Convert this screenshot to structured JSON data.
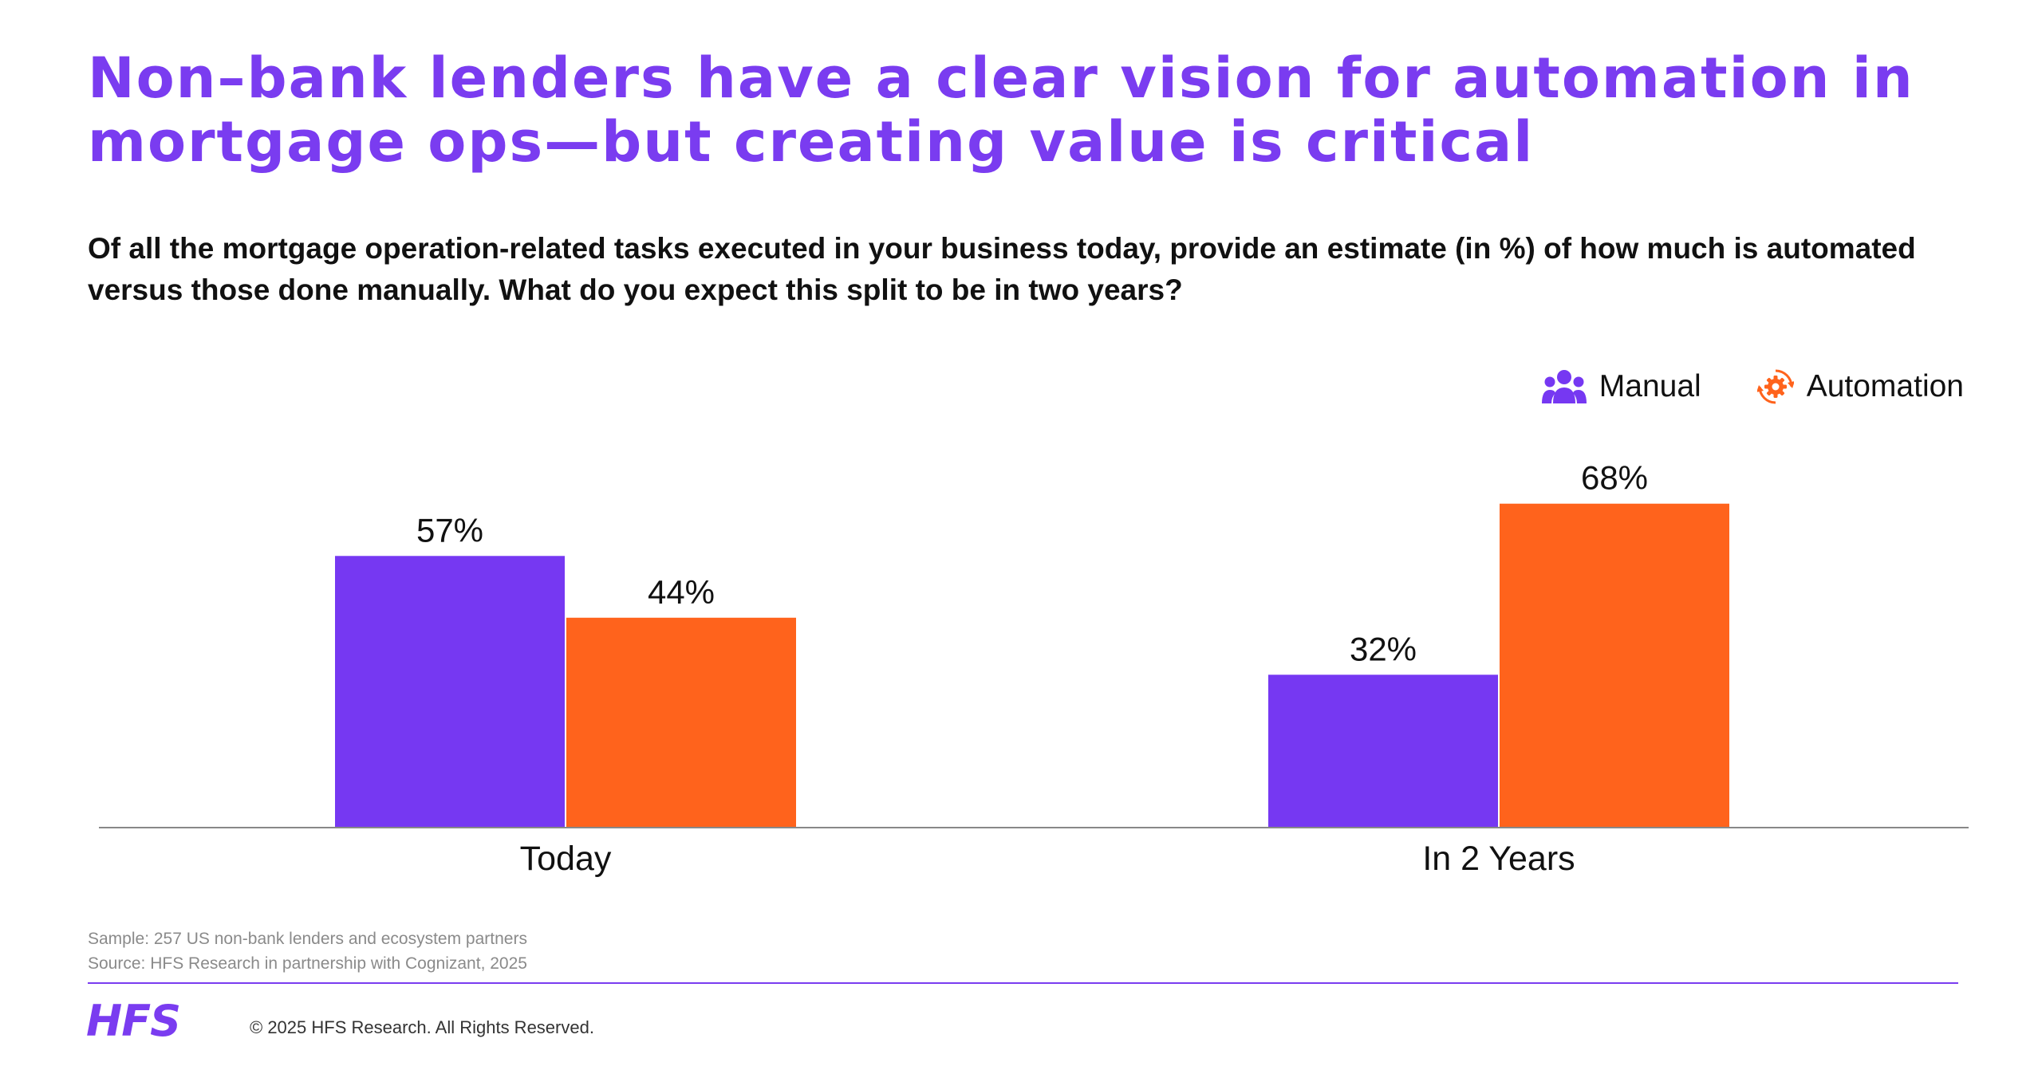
{
  "title": "Non–bank lenders have a clear vision for automation in mortgage ops—but creating value is critical",
  "question": "Of all the mortgage operation-related tasks executed in your business today, provide an estimate (in %) of how much is automated versus those done manually. What do you expect this split to be in two years?",
  "legend": {
    "manual": {
      "label": "Manual",
      "icon": "people-group-icon"
    },
    "automation": {
      "label": "Automation",
      "icon": "gear-cycle-icon"
    }
  },
  "colors": {
    "manual": "#7638f2",
    "automation": "#ff631c",
    "title": "#7a3cf0",
    "axis": "#888888"
  },
  "chart_data": {
    "type": "bar",
    "categories": [
      "Today",
      "In 2 Years"
    ],
    "series": [
      {
        "name": "Manual",
        "values": [
          57,
          32
        ],
        "labels": [
          "57%",
          "32%"
        ]
      },
      {
        "name": "Automation",
        "values": [
          44,
          68
        ],
        "labels": [
          "44%",
          "68%"
        ]
      }
    ],
    "title": "",
    "xlabel": "",
    "ylabel": "",
    "ylim": [
      0,
      100
    ],
    "grid": false,
    "legend_position": "top-right"
  },
  "footnotes": {
    "sample": "Sample: 257 US non-bank lenders and ecosystem partners",
    "source": "Source: HFS Research in partnership with Cognizant, 2025"
  },
  "footer": {
    "logo": "HFS",
    "copyright": "© 2025 HFS Research. All Rights Reserved."
  }
}
